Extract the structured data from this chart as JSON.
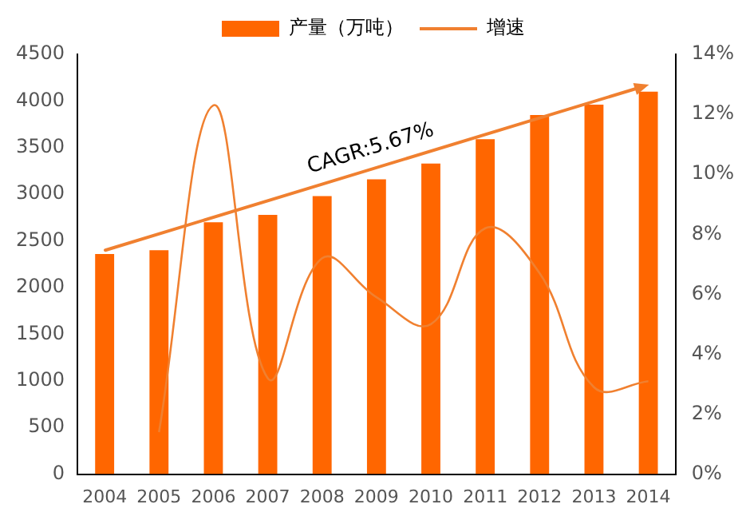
{
  "chart_data": {
    "type": "bar",
    "categories": [
      "2004",
      "2005",
      "2006",
      "2007",
      "2008",
      "2009",
      "2010",
      "2011",
      "2012",
      "2013",
      "2014"
    ],
    "series": [
      {
        "name": "产量（万吨）",
        "color": "#ff6600",
        "values": [
          2360,
          2400,
          2700,
          2780,
          2980,
          3160,
          3330,
          3590,
          3850,
          3960,
          4100
        ]
      },
      {
        "name": "增速",
        "type": "line",
        "axis": "y2",
        "color": "#f08030",
        "values": [
          null,
          1.4,
          12.3,
          3.2,
          7.2,
          5.9,
          5.0,
          8.2,
          6.7,
          2.9,
          3.1
        ]
      }
    ],
    "ylim": [
      0,
      4500
    ],
    "yticks": [
      0,
      500,
      1000,
      1500,
      2000,
      2500,
      3000,
      3500,
      4000,
      4500
    ],
    "y2lim": [
      0,
      14
    ],
    "y2ticks": [
      {
        "value": 0,
        "label": "0%"
      },
      {
        "value": 2,
        "label": "2%"
      },
      {
        "value": 4,
        "label": "4%"
      },
      {
        "value": 6,
        "label": "6%"
      },
      {
        "value": 8,
        "label": "8%"
      },
      {
        "value": 10,
        "label": "10%"
      },
      {
        "value": 12,
        "label": "12%"
      },
      {
        "value": 14,
        "label": "14%"
      }
    ],
    "annotations": [
      "CAGR:5.67%"
    ],
    "grid": false,
    "legend": "top",
    "marker": "none"
  }
}
